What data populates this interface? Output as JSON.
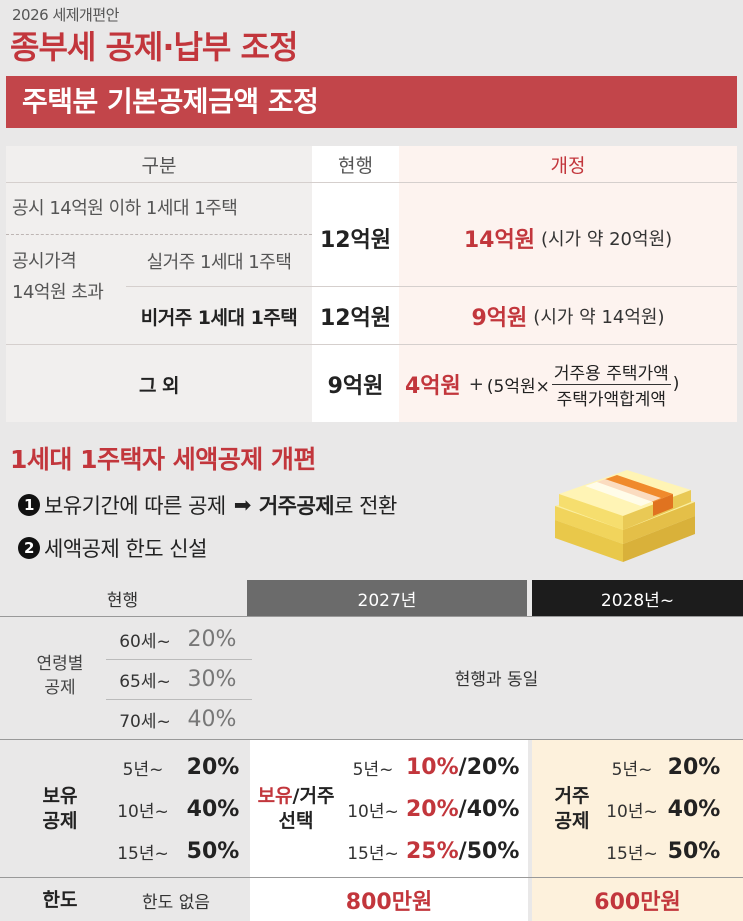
{
  "header": {
    "top_label": "2026 세제개편안",
    "title": "종부세 공제·납부 조정",
    "section1_bar": "주택분 기본공제금액 조정"
  },
  "table1": {
    "headers": {
      "category": "구분",
      "current": "현행",
      "revised": "개정"
    },
    "row1": {
      "label": "공시 14억원 이하 1세대 1주택",
      "current": "12억원",
      "revised_amount": "14억원",
      "revised_note": "(시가 약 20억원)"
    },
    "row2_group": "공시가격\n14억원 초과",
    "row2_group_line1": "공시가격",
    "row2_group_line2": "14억원 초과",
    "row2a": {
      "label": "실거주 1세대 1주택"
    },
    "row2b": {
      "label": "비거주 1세대 1주택",
      "current": "12억원",
      "revised_amount": "9억원",
      "revised_note": "(시가 약 14억원)"
    },
    "row3": {
      "label": "그 외",
      "current": "9억원",
      "revised_amount": "4억원",
      "plus": "+",
      "formula_prefix": "(5억원×",
      "fraction_num": "거주용 주택가액",
      "fraction_den": "주택가액합계액",
      "formula_suffix": ")"
    }
  },
  "section2": {
    "title": "1세대 1주택자 세액공제 개편",
    "bullet1": {
      "num": "1",
      "text_a": "보유기간에 따른 공제",
      "arrow": "➡",
      "text_b_bold": "거주공제",
      "text_c": "로 전환"
    },
    "bullet2": {
      "num": "2",
      "text": "세액공제 한도 신설"
    }
  },
  "table2": {
    "headers": {
      "current": "현행",
      "y2027": "2027년",
      "y2028": "2028년~"
    },
    "age": {
      "label_line1": "연령별",
      "label_line2": "공제",
      "rows": [
        {
          "age": "60세~",
          "pct": "20%"
        },
        {
          "age": "65세~",
          "pct": "30%"
        },
        {
          "age": "70세~",
          "pct": "40%"
        }
      ],
      "same_as_current": "현행과 동일"
    },
    "holding": {
      "label_line1": "보유",
      "label_line2": "공제",
      "rows": [
        {
          "years": "5년~",
          "pct": "20%"
        },
        {
          "years": "10년~",
          "pct": "40%"
        },
        {
          "years": "15년~",
          "pct": "50%"
        }
      ],
      "y2027_label_red": "보유",
      "y2027_label_slash": "/거주",
      "y2027_label_line2": "선택",
      "y2027_rows": [
        {
          "years": "5년~",
          "red": "10%",
          "rest": "/20%"
        },
        {
          "years": "10년~",
          "red": "20%",
          "rest": "/40%"
        },
        {
          "years": "15년~",
          "red": "25%",
          "rest": "/50%"
        }
      ],
      "y2028_label_line1": "거주",
      "y2028_label_line2": "공제",
      "y2028_rows": [
        {
          "years": "5년~",
          "pct": "20%"
        },
        {
          "years": "10년~",
          "pct": "40%"
        },
        {
          "years": "15년~",
          "pct": "50%"
        }
      ]
    },
    "limit": {
      "label": "한도",
      "current": "한도 없음",
      "y2027": "800만원",
      "y2028": "600만원"
    }
  },
  "colors": {
    "accent_red": "#c2363c",
    "bar_red": "#c2454a",
    "dark": "#1c1c1c",
    "gray_header": "#6b6b6b"
  }
}
